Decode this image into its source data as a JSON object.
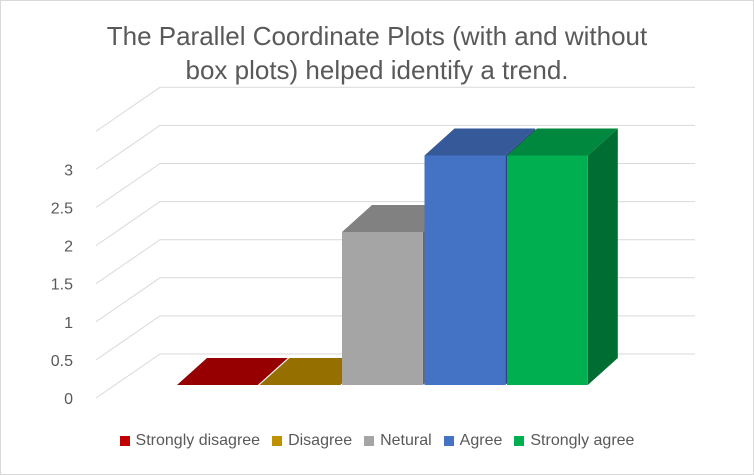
{
  "chart_data": {
    "type": "bar",
    "title": "The Parallel Coordinate Plots (with and without box plots) helped identify a trend.",
    "title_lines": [
      "The Parallel Coordinate Plots (with and without",
      "box plots) helped identify a trend."
    ],
    "categories": [
      "Strongly disagree",
      "Disagree",
      "Netural",
      "Agree",
      "Strongly agree"
    ],
    "values": [
      0,
      0,
      2,
      3,
      3
    ],
    "colors": [
      "#c00000",
      "#bf9000",
      "#a5a5a5",
      "#4472c4",
      "#00b050"
    ],
    "ylim": [
      0,
      3
    ],
    "yticks": [
      "0",
      "0.5",
      "1",
      "1.5",
      "2",
      "2.5",
      "3"
    ],
    "grid": true,
    "legend_position": "bottom",
    "style": "3d-column"
  }
}
